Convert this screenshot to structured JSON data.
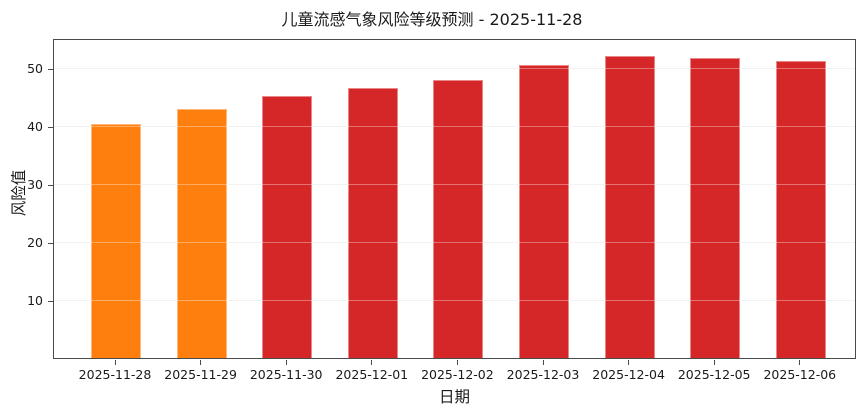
{
  "title": "儿童流感气象风险等级预测 - 2025-11-28",
  "chart_data": {
    "type": "bar",
    "title": "儿童流感气象风险等级预测 - 2025-11-28",
    "xlabel": "日期",
    "ylabel": "风险值",
    "categories": [
      "2025-11-28",
      "2025-11-29",
      "2025-11-30",
      "2025-12-01",
      "2025-12-02",
      "2025-12-03",
      "2025-12-04",
      "2025-12-05",
      "2025-12-06"
    ],
    "values": [
      40.4,
      42.9,
      45.2,
      46.6,
      48.0,
      50.5,
      52.1,
      51.8,
      51.3
    ],
    "bar_colors": [
      "#ff7f0e",
      "#ff7f0e",
      "#d62728",
      "#d62728",
      "#d62728",
      "#d62728",
      "#d62728",
      "#d62728",
      "#d62728"
    ],
    "ylim": [
      0,
      55.2
    ],
    "yticks": [
      10,
      20,
      30,
      40,
      50
    ],
    "grid": true,
    "legend": "none"
  },
  "colors": {
    "orange_bar": "#ff7f0e",
    "red_bar": "#d62728",
    "grid": "#ececec",
    "spine": "#4a4a4a",
    "text": "#1a1a1a",
    "background": "#ffffff"
  }
}
